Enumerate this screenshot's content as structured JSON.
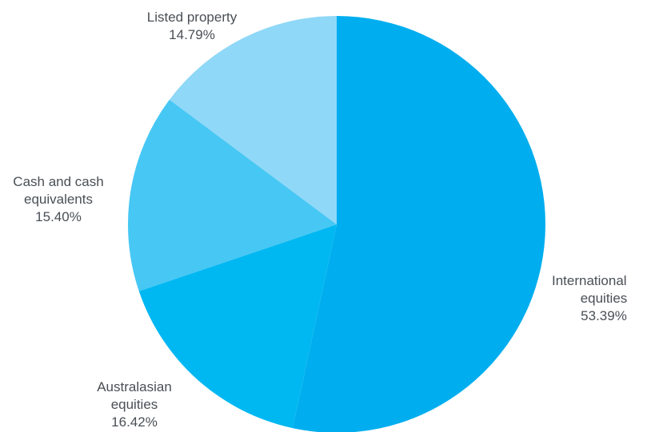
{
  "chart_data": {
    "type": "pie",
    "title": "",
    "start_angle_deg": 0,
    "direction": "clockwise",
    "slices": [
      {
        "label_lines": [
          "International",
          "equities"
        ],
        "value": 53.39,
        "value_label": "53.39%",
        "color": "#00aeef",
        "label_anchor": "start"
      },
      {
        "label_lines": [
          "Australasian",
          "equities"
        ],
        "value": 16.42,
        "value_label": "16.42%",
        "color": "#00b8f1",
        "label_anchor": "middle"
      },
      {
        "label_lines": [
          "Cash and cash",
          "equivalents"
        ],
        "value": 15.4,
        "value_label": "15.40%",
        "color": "#47c7f4",
        "label_anchor": "middle"
      },
      {
        "label_lines": [
          "Listed property"
        ],
        "value": 14.79,
        "value_label": "14.79%",
        "color": "#8fd8f7",
        "label_anchor": "middle"
      }
    ]
  }
}
